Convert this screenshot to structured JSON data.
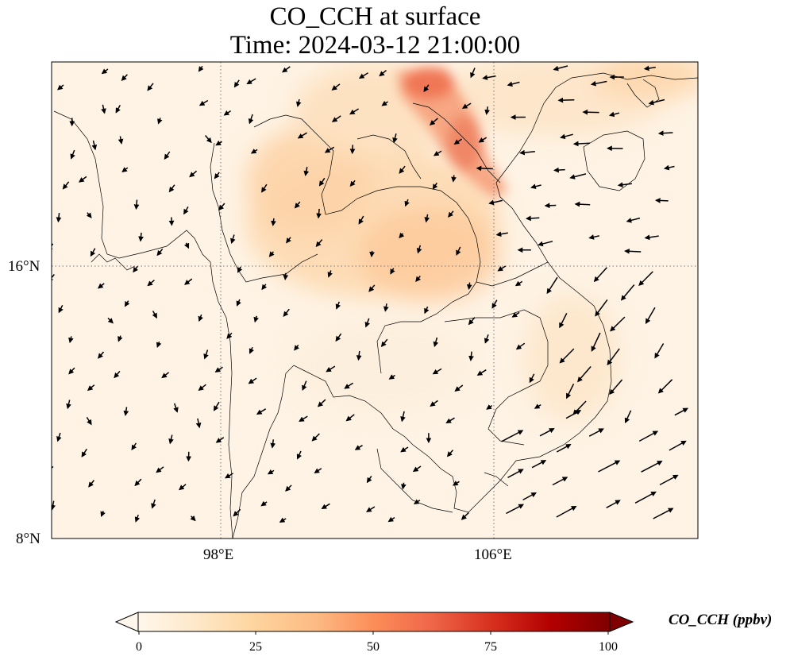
{
  "title": "CO_CCH at surface",
  "subtitle": "Time: 2024-03-12 21:00:00",
  "map": {
    "lon_ticks": [
      "98°E",
      "106°E"
    ],
    "lat_ticks": [
      "16°N",
      "8°N"
    ],
    "lon_tick_values": [
      98,
      106
    ],
    "lat_tick_values": [
      16,
      8
    ],
    "extent_lon": [
      93,
      112
    ],
    "extent_lat": [
      8,
      22
    ],
    "gridlines": "dotted",
    "vectors": "wind arrows"
  },
  "colorbar": {
    "label": "CO_CCH (ppbv)",
    "ticks": [
      "0",
      "25",
      "50",
      "75",
      "100"
    ],
    "range": [
      0,
      100
    ],
    "colormap": "OrRd",
    "colors": [
      "#fff7ec",
      "#fee8c8",
      "#fdd49e",
      "#fdbb84",
      "#fc8d59",
      "#ef6548",
      "#d7301f",
      "#b30000",
      "#7f0000"
    ]
  }
}
